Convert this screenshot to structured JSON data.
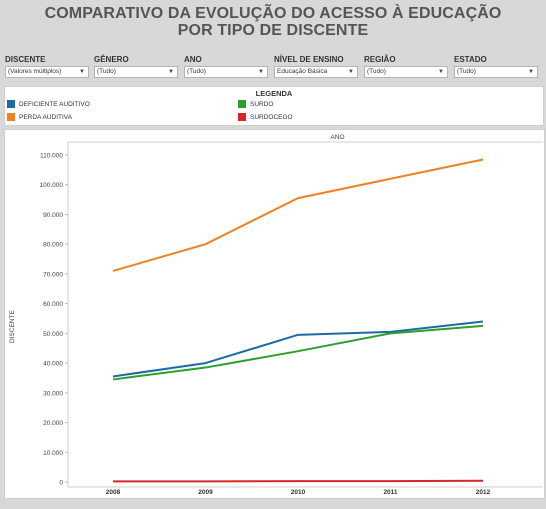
{
  "title_line1": "COMPARATIVO DA EVOLUÇÃO DO ACESSO À EDUCAÇÃO",
  "title_line2": "POR TIPO DE DISCENTE",
  "filters": [
    {
      "label": "DISCENTE",
      "value": "(Valores múltiplos)"
    },
    {
      "label": "GÊNERO",
      "value": "(Tudo)"
    },
    {
      "label": "ANO",
      "value": "(Tudo)"
    },
    {
      "label": "NÍVEL DE ENSINO",
      "value": "Educação Básica"
    },
    {
      "label": "REGIÃO",
      "value": "(Tudo)"
    },
    {
      "label": "ESTADO",
      "value": "(Tudo)"
    }
  ],
  "legend": {
    "title": "LEGENDA",
    "items": [
      {
        "label": "DEFICIENTE AUDITIVO",
        "color": "#1f6aa5"
      },
      {
        "label": "SURDO",
        "color": "#2ca02c"
      },
      {
        "label": "PERDA AUDITIVA",
        "color": "#f28020"
      },
      {
        "label": "SURDOCEGO",
        "color": "#d62728"
      }
    ]
  },
  "chart_data": {
    "type": "line",
    "title": "ANO",
    "ylabel": "DISCENTE",
    "xlabel": "",
    "categories": [
      "2008",
      "2009",
      "2010",
      "2011",
      "2012"
    ],
    "y_ticks": [
      "0",
      "10.000",
      "20.000",
      "30.000",
      "40.000",
      "50.000",
      "60.000",
      "70.000",
      "80.000",
      "90.000",
      "100.000",
      "110.000"
    ],
    "ylim": [
      0,
      110000
    ],
    "grid": false,
    "legend_position": "top",
    "series": [
      {
        "name": "DEFICIENTE AUDITIVO",
        "color": "#1f6aa5",
        "values": [
          35500,
          40000,
          49500,
          50500,
          54000
        ]
      },
      {
        "name": "SURDO",
        "color": "#2ca02c",
        "values": [
          34500,
          38500,
          44000,
          50000,
          52500
        ]
      },
      {
        "name": "PERDA AUDITIVA",
        "color": "#f28020",
        "values": [
          71000,
          80000,
          95500,
          102000,
          108500
        ]
      },
      {
        "name": "SURDOCEGO",
        "color": "#d62728",
        "values": [
          200,
          200,
          300,
          300,
          400
        ]
      }
    ]
  }
}
